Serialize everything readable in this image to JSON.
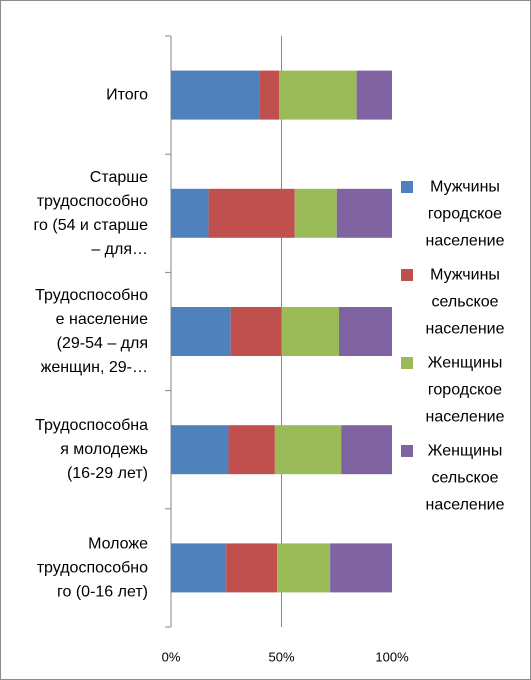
{
  "chart_data": {
    "type": "bar",
    "orientation": "horizontal",
    "stacked": "percent",
    "categories": [
      {
        "lines": [
          "Итого"
        ]
      },
      {
        "lines": [
          "Старше",
          "трудоспособно",
          "го (54 и старше",
          "– для…"
        ]
      },
      {
        "lines": [
          "Трудоспособно",
          "е население",
          "(29-54 – для",
          "женщин, 29-…"
        ]
      },
      {
        "lines": [
          "Трудоспособна",
          "я молодежь",
          "(16-29 лет)"
        ]
      },
      {
        "lines": [
          "Моложе",
          "трудоспособно",
          "го (0-16 лет)"
        ]
      }
    ],
    "series": [
      {
        "name": "Мужчины городское население",
        "legend_lines": [
          "Мужчины",
          "городское",
          "население"
        ],
        "color": "#4f81bd",
        "values": [
          40,
          17,
          27,
          26,
          25
        ]
      },
      {
        "name": "Мужчины сельское население",
        "legend_lines": [
          "Мужчины",
          "сельское",
          "население"
        ],
        "color": "#c0504d",
        "values": [
          9,
          39,
          23,
          21,
          23
        ]
      },
      {
        "name": "Женщины городское население",
        "legend_lines": [
          "Женщины",
          "городское",
          "население"
        ],
        "color": "#9bbb59",
        "values": [
          35,
          19,
          26,
          30,
          24
        ]
      },
      {
        "name": "Женщины сельское население",
        "legend_lines": [
          "Женщины",
          "сельское",
          "население"
        ],
        "color": "#8064a2",
        "values": [
          16,
          25,
          24,
          23,
          28
        ]
      }
    ],
    "x_ticks": [
      "0%",
      "50%",
      "100%"
    ],
    "xlim": [
      0,
      100
    ],
    "gridlines": "vertical at 50%",
    "legend_position": "right"
  }
}
